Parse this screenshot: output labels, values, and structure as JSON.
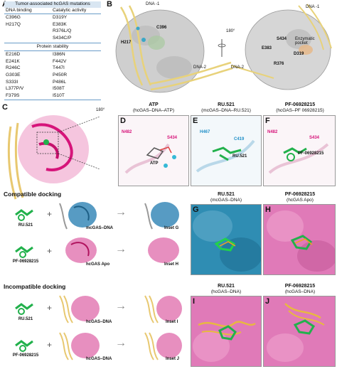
{
  "panels": {
    "a": {
      "letter": "A",
      "table_title": "Tumor-associated hcGAS mutations",
      "col1_header": "DNA binding",
      "col2_header": "Catalytic activity",
      "dna_binding": [
        "C396G",
        "H217Q"
      ],
      "catalytic": [
        "D319Y",
        "E383K",
        "R376L/Q",
        "S434C/P"
      ],
      "stability_header": "Protein stability",
      "stability_left": [
        "E216D",
        "E241K",
        "R246C",
        "G303E",
        "S333I",
        "L377P/V",
        "F379S"
      ],
      "stability_right": [
        "I386N",
        "F442V",
        "T447I",
        "P450R",
        "P486L",
        "I508T",
        "I510T"
      ]
    },
    "b": {
      "letter": "B",
      "dna_minus1_left": "DNA -1",
      "dna_minus1_right": "DNA -1",
      "dna2_left": "DNA-2",
      "dna2_right": "DNA-2",
      "rotation": "180°",
      "residues_left": [
        "C396",
        "H217"
      ],
      "residues_right": [
        "S434",
        "E383",
        "D319",
        "R376"
      ],
      "pocket_label": "Enzymatic pocket"
    },
    "c": {
      "letter": "C",
      "rotation": "180°"
    },
    "d": {
      "letter": "D",
      "title": "ATP",
      "subtitle": "(hcGAS–DNA–ATP)",
      "labels": [
        "N482",
        "S434",
        "ATP"
      ]
    },
    "e": {
      "letter": "E",
      "title": "RU.521",
      "subtitle": "(mcGAS–DNA–RU.521)",
      "labels": [
        "H467",
        "C419",
        "RU.521"
      ]
    },
    "f": {
      "letter": "F",
      "title": "PF-06928215",
      "subtitle": "(hcGAS–PF 06928215)",
      "labels": [
        "N482",
        "S434",
        "PF-06928215"
      ]
    }
  },
  "compatible": {
    "title": "Compatible docking",
    "row1": {
      "ligand": "RU.521",
      "target": "mcGAS–DNA",
      "result": "Inset G"
    },
    "row2": {
      "ligand": "PF-06928215",
      "target": "hcGAS Apo",
      "result": "Inset H"
    },
    "g": {
      "letter": "G",
      "title": "RU.521",
      "subtitle": "(mcGAS–DNA)"
    },
    "h": {
      "letter": "H",
      "title": "PF-06928215",
      "subtitle": "(hcGAS Apo)"
    }
  },
  "incompatible": {
    "title": "Incompatible docking",
    "row1": {
      "ligand": "RU.521",
      "target": "hcGAS–DNA",
      "result": "Inset I"
    },
    "row2": {
      "ligand": "PF-06928215",
      "target": "hcGAS–DNA",
      "result": "Inset J"
    },
    "i": {
      "letter": "I",
      "title": "RU.521",
      "subtitle": "(hcGAS–DNA)"
    },
    "j": {
      "letter": "J",
      "title": "PF-06928215",
      "subtitle": "(hcGAS–DNA)"
    }
  },
  "symbols": {
    "plus": "+",
    "arrow": "→"
  },
  "colors": {
    "table_header": "#d9e6f2",
    "table_line": "#6a9cc8",
    "surface_grey": "#cfcfcf",
    "dna_yellow": "#e8d27a",
    "hcgas_pink": "#e37bb4",
    "mcgas_blue": "#3a8ab8",
    "ligand_green": "#22b14c",
    "label_magenta": "#d6147a",
    "label_blue": "#1f8fc7"
  }
}
